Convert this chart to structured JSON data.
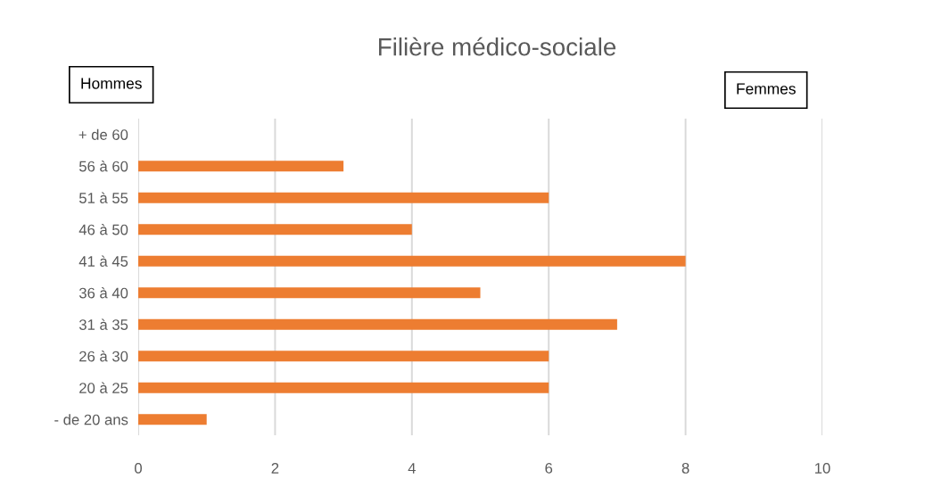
{
  "chart_data": {
    "type": "bar",
    "orientation": "horizontal",
    "title": "Filière médico-sociale",
    "categories": [
      "+ de 60",
      "56 à 60",
      "51 à 55",
      "46 à 50",
      "41 à 45",
      "36 à 40",
      "31 à 35",
      "26 à 30",
      "20 à 25",
      "- de 20 ans"
    ],
    "values": [
      null,
      3,
      6,
      4,
      8,
      5,
      7,
      6,
      6,
      1
    ],
    "color": "#ed7d31",
    "xlim": [
      0,
      10
    ],
    "xticks": [
      0,
      2,
      4,
      6,
      8,
      10
    ],
    "grid": "x",
    "annotations": [
      "Hommes",
      "Femmes"
    ]
  }
}
